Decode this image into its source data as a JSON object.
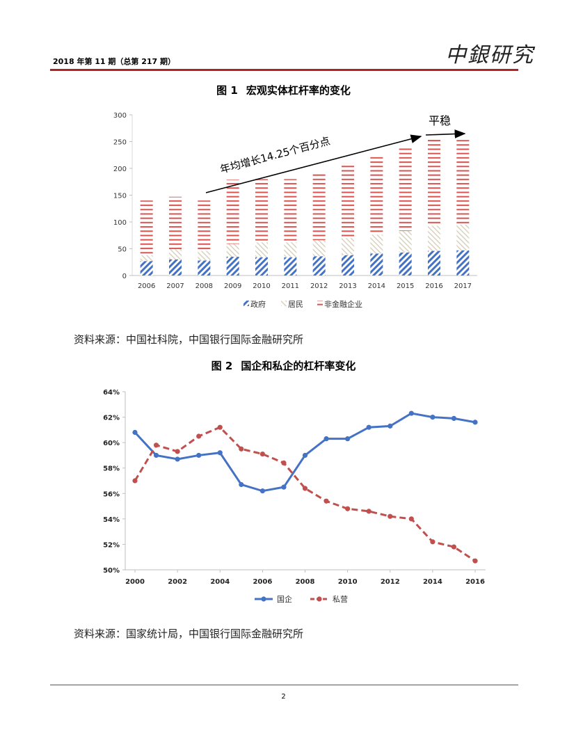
{
  "header": {
    "issue": "2018 年第 11 期（总第 217 期）",
    "brand": "中銀研究"
  },
  "figure1": {
    "number": "图 1",
    "title": "宏观实体杠杆率的变化",
    "annotation_growth": "年均增长14.25个百分点",
    "annotation_stable": "平稳",
    "source": "资料来源：中国社科院，中国银行国际金融研究所"
  },
  "figure2": {
    "number": "图 2",
    "title": "国企和私企的杠杆率变化",
    "source": "资料来源：国家统计局，中国银行国际金融研究所"
  },
  "footer": {
    "page": "2"
  },
  "colors": {
    "accent_red": "#b22222",
    "blue": "#4472c4",
    "red": "#c0504d",
    "beige": "#d9d2c0"
  },
  "chart_data": [
    {
      "type": "bar",
      "stacked": true,
      "categories": [
        "2006",
        "2007",
        "2008",
        "2009",
        "2010",
        "2011",
        "2012",
        "2013",
        "2014",
        "2015",
        "2016",
        "2017"
      ],
      "series": [
        {
          "name": "政府",
          "values": [
            27,
            30,
            28,
            35,
            34,
            34,
            36,
            38,
            41,
            43,
            46,
            47
          ]
        },
        {
          "name": "居民",
          "values": [
            11,
            19,
            18,
            24,
            28,
            28,
            30,
            32,
            35,
            40,
            47,
            48
          ]
        },
        {
          "name": "非金融企业",
          "values": [
            102,
            98,
            94,
            120,
            118,
            118,
            126,
            140,
            146,
            158,
            162,
            158
          ]
        }
      ],
      "ylim": [
        0,
        300
      ],
      "yticks": [
        "0",
        "50",
        "100",
        "150",
        "200",
        "250",
        "300"
      ],
      "legend": "bottom",
      "grid": false
    },
    {
      "type": "line",
      "x": [
        2000,
        2001,
        2002,
        2003,
        2004,
        2005,
        2006,
        2007,
        2008,
        2009,
        2010,
        2011,
        2012,
        2013,
        2014,
        2015,
        2016
      ],
      "series": [
        {
          "name": "国企",
          "values": [
            60.8,
            59.0,
            58.7,
            59.0,
            59.2,
            56.7,
            56.2,
            56.5,
            59.0,
            60.3,
            60.3,
            61.2,
            61.3,
            62.3,
            62.0,
            61.9,
            61.6
          ]
        },
        {
          "name": "私营",
          "values": [
            57.0,
            59.8,
            59.3,
            60.5,
            61.2,
            59.5,
            59.1,
            58.4,
            56.4,
            55.4,
            54.8,
            54.6,
            54.2,
            54.0,
            52.2,
            51.8,
            50.7
          ]
        }
      ],
      "ylim": [
        50,
        64
      ],
      "yticks": [
        "50%",
        "52%",
        "54%",
        "56%",
        "58%",
        "60%",
        "62%",
        "64%"
      ],
      "xticks": [
        "2000",
        "2002",
        "2004",
        "2006",
        "2008",
        "2010",
        "2012",
        "2014",
        "2016"
      ],
      "legend": "bottom",
      "grid": false
    }
  ]
}
